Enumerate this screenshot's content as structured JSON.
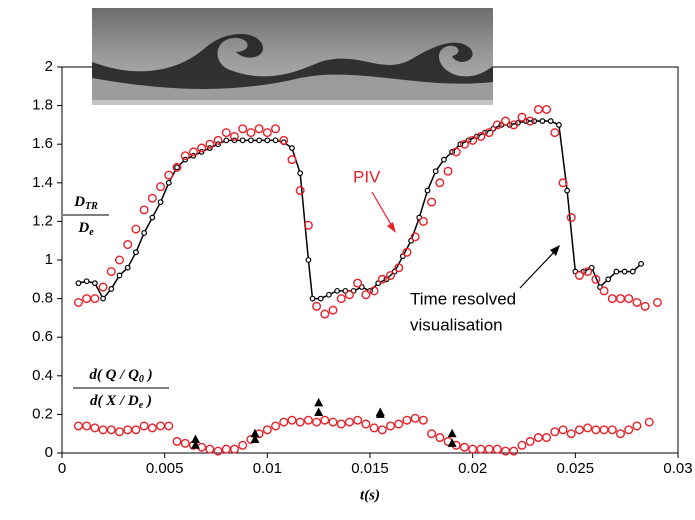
{
  "chart_data": {
    "type": "scatter",
    "x_label": "t(s)",
    "y_label": {
      "numerator": [
        "D",
        "TR"
      ],
      "denominator": [
        "D",
        "e"
      ]
    },
    "y_label_lower": {
      "numerator": [
        "d( Q / Q",
        "0",
        " )"
      ],
      "denominator": [
        "d( X / D",
        "e",
        " )"
      ]
    },
    "annotations": [
      {
        "text": [
          "PIV"
        ],
        "color": "#e8202a"
      },
      {
        "text": [
          "Time resolved",
          "visualisation"
        ],
        "color": "#000000"
      }
    ],
    "xlim": [
      0,
      0.03
    ],
    "xticks": [
      0,
      0.005,
      0.01,
      0.015,
      0.02,
      0.025,
      0.03
    ],
    "ylim": [
      0,
      2
    ],
    "yticks": [
      0,
      0.2,
      0.4,
      0.6,
      0.8,
      1,
      1.2,
      1.4,
      1.6,
      1.8,
      2
    ],
    "series": [
      {
        "marker": "line",
        "color": "#000000",
        "x": [
          0.0008,
          0.0012,
          0.0016,
          0.002,
          0.0024,
          0.0028,
          0.0032,
          0.0036,
          0.004,
          0.0044,
          0.0048,
          0.0052,
          0.0056,
          0.006,
          0.0064,
          0.0068,
          0.0072,
          0.0076,
          0.008,
          0.0084,
          0.0088,
          0.0092,
          0.0096,
          0.01,
          0.0104,
          0.0108,
          0.0112,
          0.0116,
          0.012,
          0.0122,
          0.0126,
          0.013,
          0.0134,
          0.0138,
          0.0142,
          0.0146,
          0.015,
          0.0154,
          0.0158,
          0.0162,
          0.0166,
          0.017,
          0.0174,
          0.0178,
          0.0182,
          0.0186,
          0.019,
          0.0194,
          0.0198,
          0.0202,
          0.0206,
          0.021,
          0.0214,
          0.0218,
          0.0222,
          0.0226,
          0.023,
          0.0234,
          0.0238,
          0.0242,
          0.0246,
          0.025,
          0.0254,
          0.0258,
          0.0262,
          0.0266,
          0.027,
          0.0274,
          0.0278,
          0.0282
        ],
        "values": [
          0.88,
          0.89,
          0.88,
          0.8,
          0.85,
          0.92,
          0.96,
          1.04,
          1.14,
          1.22,
          1.3,
          1.4,
          1.48,
          1.52,
          1.54,
          1.56,
          1.58,
          1.6,
          1.62,
          1.62,
          1.62,
          1.62,
          1.62,
          1.62,
          1.62,
          1.61,
          1.58,
          1.45,
          1.0,
          0.8,
          0.8,
          0.82,
          0.84,
          0.84,
          0.84,
          0.86,
          0.84,
          0.88,
          0.9,
          0.94,
          1.02,
          1.1,
          1.22,
          1.36,
          1.46,
          1.52,
          1.56,
          1.6,
          1.62,
          1.64,
          1.66,
          1.68,
          1.7,
          1.7,
          1.71,
          1.72,
          1.72,
          1.72,
          1.72,
          1.7,
          1.36,
          0.94,
          0.94,
          0.96,
          0.86,
          0.9,
          0.94,
          0.94,
          0.94,
          0.98
        ]
      },
      {
        "marker": "circle",
        "color": "#e8202a",
        "x": [
          0.0008,
          0.0012,
          0.0016,
          0.002,
          0.0024,
          0.0028,
          0.0032,
          0.0036,
          0.004,
          0.0044,
          0.0048,
          0.0052,
          0.0056,
          0.006,
          0.0064,
          0.0068,
          0.0072,
          0.0076,
          0.008,
          0.0084,
          0.0088,
          0.0092,
          0.0096,
          0.01,
          0.0104,
          0.0108,
          0.0112,
          0.0116,
          0.012,
          0.0124,
          0.0128,
          0.0132,
          0.0136,
          0.014,
          0.0144,
          0.0148,
          0.0152,
          0.0156,
          0.016,
          0.0164,
          0.0168,
          0.0172,
          0.0176,
          0.018,
          0.0184,
          0.0188,
          0.0192,
          0.0196,
          0.02,
          0.0204,
          0.0208,
          0.0212,
          0.0216,
          0.022,
          0.0224,
          0.0228,
          0.0232,
          0.0236,
          0.024,
          0.0244,
          0.0248,
          0.0252,
          0.0256,
          0.026,
          0.0264,
          0.0268,
          0.0272,
          0.0276,
          0.028,
          0.0284,
          0.029
        ],
        "values": [
          0.78,
          0.8,
          0.8,
          0.86,
          0.94,
          1.0,
          1.08,
          1.16,
          1.26,
          1.32,
          1.38,
          1.44,
          1.48,
          1.54,
          1.56,
          1.58,
          1.6,
          1.62,
          1.66,
          1.64,
          1.68,
          1.66,
          1.68,
          1.66,
          1.68,
          1.62,
          1.52,
          1.36,
          1.18,
          0.76,
          0.72,
          0.74,
          0.8,
          0.82,
          0.88,
          0.82,
          0.84,
          0.9,
          0.92,
          0.96,
          1.04,
          1.12,
          1.2,
          1.3,
          1.4,
          1.46,
          1.56,
          1.6,
          1.62,
          1.64,
          1.66,
          1.7,
          1.72,
          1.7,
          1.74,
          1.72,
          1.78,
          1.78,
          1.66,
          1.4,
          1.22,
          0.92,
          0.94,
          0.9,
          0.84,
          0.8,
          0.8,
          0.8,
          0.78,
          0.76,
          0.78
        ]
      },
      {
        "marker": "circle",
        "color": "#e8202a",
        "x": [
          0.0008,
          0.0012,
          0.0016,
          0.002,
          0.0024,
          0.0028,
          0.0032,
          0.0036,
          0.004,
          0.0044,
          0.0048,
          0.0052,
          0.0056,
          0.006,
          0.0064,
          0.0068,
          0.0072,
          0.0076,
          0.008,
          0.0084,
          0.0088,
          0.0092,
          0.0096,
          0.01,
          0.0104,
          0.0108,
          0.0112,
          0.0116,
          0.012,
          0.0124,
          0.0128,
          0.0132,
          0.0136,
          0.014,
          0.0144,
          0.0148,
          0.0152,
          0.0156,
          0.016,
          0.0164,
          0.0168,
          0.0172,
          0.0176,
          0.018,
          0.0184,
          0.0188,
          0.0192,
          0.0196,
          0.02,
          0.0204,
          0.0208,
          0.0212,
          0.0216,
          0.022,
          0.0224,
          0.0228,
          0.0232,
          0.0236,
          0.024,
          0.0244,
          0.0248,
          0.0252,
          0.0256,
          0.026,
          0.0264,
          0.0268,
          0.0272,
          0.0276,
          0.028,
          0.0286
        ],
        "values": [
          0.14,
          0.14,
          0.13,
          0.12,
          0.12,
          0.11,
          0.12,
          0.12,
          0.14,
          0.13,
          0.14,
          0.14,
          0.06,
          0.05,
          0.04,
          0.03,
          0.02,
          0.01,
          0.02,
          0.02,
          0.04,
          0.07,
          0.1,
          0.12,
          0.14,
          0.16,
          0.17,
          0.16,
          0.17,
          0.16,
          0.17,
          0.16,
          0.15,
          0.16,
          0.17,
          0.15,
          0.13,
          0.12,
          0.14,
          0.15,
          0.17,
          0.18,
          0.17,
          0.1,
          0.08,
          0.06,
          0.04,
          0.03,
          0.02,
          0.02,
          0.02,
          0.02,
          0.01,
          0.01,
          0.04,
          0.06,
          0.08,
          0.08,
          0.11,
          0.12,
          0.1,
          0.12,
          0.13,
          0.12,
          0.12,
          0.12,
          0.1,
          0.12,
          0.14,
          0.16
        ]
      },
      {
        "marker": "triangle",
        "color": "#000000",
        "x": [
          0.0065,
          0.0065,
          0.0094,
          0.0094,
          0.0125,
          0.0125,
          0.0155,
          0.0155,
          0.019,
          0.019
        ],
        "values": [
          0.07,
          0.04,
          0.1,
          0.07,
          0.26,
          0.21,
          0.21,
          0.2,
          0.1,
          0.05
        ]
      }
    ]
  }
}
